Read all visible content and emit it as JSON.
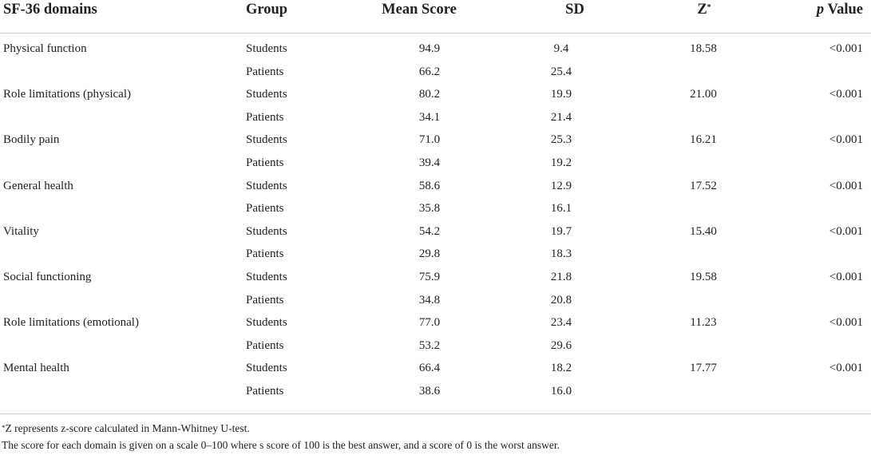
{
  "headers": {
    "domain": "SF-36 domains",
    "group": "Group",
    "mean": "Mean Score",
    "sd": "SD",
    "z": "Z",
    "z_mark": "*",
    "p_italic": "p",
    "p_rest": " Value"
  },
  "rows": [
    {
      "domain": "Physical function",
      "group": "Students",
      "mean": "94.9",
      "sd": "9.4",
      "z": "18.58",
      "p": "<0.001"
    },
    {
      "domain": "",
      "group": "Patients",
      "mean": "66.2",
      "sd": "25.4",
      "z": "",
      "p": ""
    },
    {
      "domain": "Role limitations (physical)",
      "group": "Students",
      "mean": "80.2",
      "sd": "19.9",
      "z": "21.00",
      "p": "<0.001"
    },
    {
      "domain": "",
      "group": "Patients",
      "mean": "34.1",
      "sd": "21.4",
      "z": "",
      "p": ""
    },
    {
      "domain": "Bodily pain",
      "group": "Students",
      "mean": "71.0",
      "sd": "25.3",
      "z": "16.21",
      "p": "<0.001"
    },
    {
      "domain": "",
      "group": "Patients",
      "mean": "39.4",
      "sd": "19.2",
      "z": "",
      "p": ""
    },
    {
      "domain": "General health",
      "group": "Students",
      "mean": "58.6",
      "sd": "12.9",
      "z": "17.52",
      "p": "<0.001"
    },
    {
      "domain": "",
      "group": "Patients",
      "mean": "35.8",
      "sd": "16.1",
      "z": "",
      "p": ""
    },
    {
      "domain": "Vitality",
      "group": "Students",
      "mean": "54.2",
      "sd": "19.7",
      "z": "15.40",
      "p": "<0.001"
    },
    {
      "domain": "",
      "group": "Patients",
      "mean": "29.8",
      "sd": "18.3",
      "z": "",
      "p": ""
    },
    {
      "domain": "Social functioning",
      "group": "Students",
      "mean": "75.9",
      "sd": "21.8",
      "z": "19.58",
      "p": "<0.001"
    },
    {
      "domain": "",
      "group": "Patients",
      "mean": "34.8",
      "sd": "20.8",
      "z": "",
      "p": ""
    },
    {
      "domain": "Role limitations (emotional)",
      "group": "Students",
      "mean": "77.0",
      "sd": "23.4",
      "z": "11.23",
      "p": "<0.001"
    },
    {
      "domain": "",
      "group": "Patients",
      "mean": "53.2",
      "sd": "29.6",
      "z": "",
      "p": ""
    },
    {
      "domain": "Mental health",
      "group": "Students",
      "mean": "66.4",
      "sd": "18.2",
      "z": "17.77",
      "p": "<0.001"
    },
    {
      "domain": "",
      "group": "Patients",
      "mean": "38.6",
      "sd": "16.0",
      "z": "",
      "p": ""
    }
  ],
  "footnotes": {
    "mark": "*",
    "note1": "Z represents z-score calculated in Mann-Whitney U-test.",
    "note2": "The score for each domain is given on a scale 0–100 where s score of 100 is the best answer, and a score of 0 is the worst answer."
  }
}
